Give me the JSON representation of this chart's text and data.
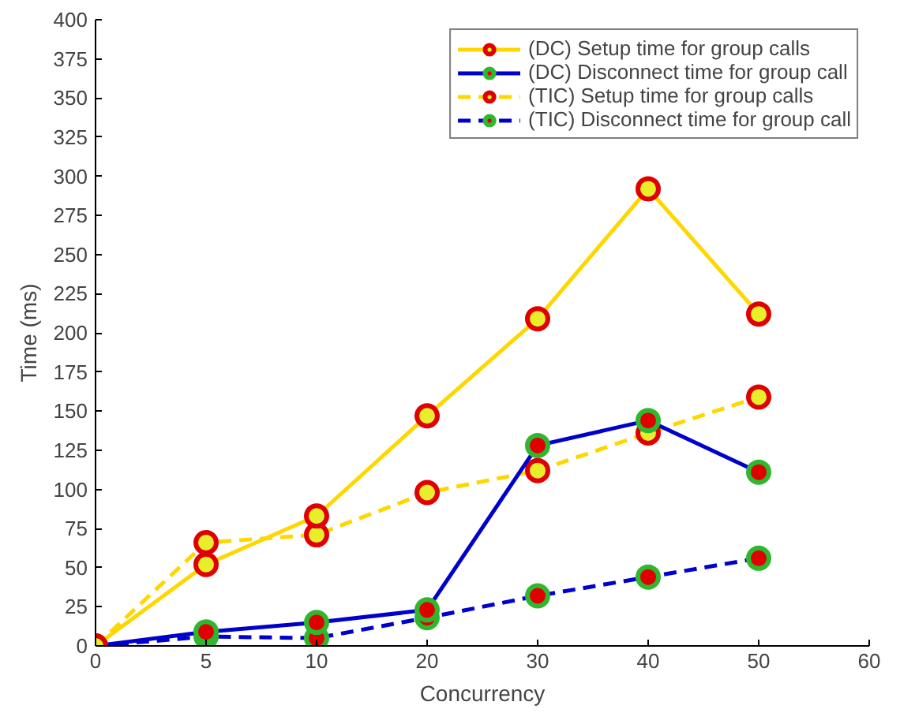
{
  "chart_data": {
    "type": "line",
    "xlabel": "Concurrency",
    "ylabel": "Time (ms)",
    "categories": [
      "0",
      "5",
      "10",
      "20",
      "30",
      "40",
      "50",
      "60"
    ],
    "ylim": [
      0,
      400
    ],
    "yticks": [
      0,
      25,
      50,
      75,
      100,
      125,
      150,
      175,
      200,
      225,
      250,
      275,
      300,
      325,
      350,
      375,
      400
    ],
    "grid": false,
    "legend": "top right",
    "marker": "circle",
    "series": [
      {
        "name": "(DC) Setup time for group calls",
        "color": "#ffd700",
        "line_style": "solid",
        "values": [
          0,
          52,
          83,
          147,
          209,
          292,
          212,
          null
        ]
      },
      {
        "name": "(DC) Disconnect time for group call",
        "color": "#0000cc",
        "line_style": "solid",
        "values": [
          0,
          9,
          15,
          23,
          128,
          144,
          111,
          null
        ]
      },
      {
        "name": "(TIC) Setup time for group calls",
        "color": "#ffd700",
        "line_style": "dashed",
        "values": [
          0,
          66,
          71,
          98,
          112,
          136,
          159,
          null
        ]
      },
      {
        "name": "(TIC) Disconnect time for group call",
        "color": "#0000cc",
        "line_style": "dashed",
        "values": [
          0,
          6,
          5,
          18,
          32,
          44,
          56,
          null
        ]
      }
    ]
  }
}
